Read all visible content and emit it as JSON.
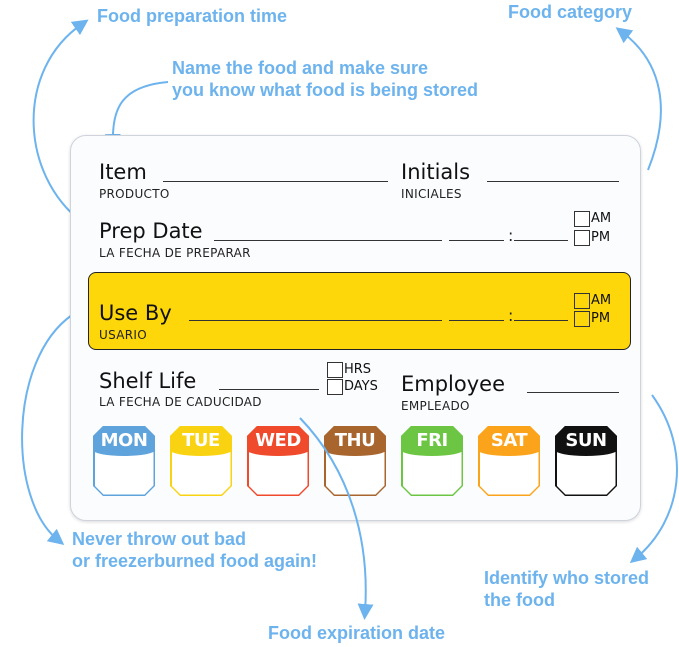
{
  "annotations": {
    "prep_time": "Food preparation time",
    "category": "Food category",
    "name_food": [
      "Name the food and make sure",
      "you know what food is being stored"
    ],
    "never_throw": [
      "Never throw out bad",
      "or freezerburned food again!"
    ],
    "identify": [
      "Identify who stored",
      "the food"
    ],
    "expiration": "Food expiration date"
  },
  "label": {
    "item": "Item",
    "item_sub": "PRODUCTO",
    "initials": "Initials",
    "initials_sub": "INICIALES",
    "prep_date": "Prep Date",
    "prep_date_sub": "LA FECHA DE PREPARAR",
    "use_by": "Use By",
    "use_by_sub": "USARIO",
    "shelf_life": "Shelf Life",
    "shelf_life_sub": "LA FECHA DE CADUCIDAD",
    "employee": "Employee",
    "employee_sub": "EMPLEADO",
    "am": "AM",
    "pm": "PM",
    "hrs": "HRS",
    "days": "DAYS",
    "colon": ":"
  },
  "days": [
    {
      "label": "MON",
      "color": "#5ea3dc"
    },
    {
      "label": "TUE",
      "color": "#f9d312"
    },
    {
      "label": "WED",
      "color": "#ef4a2c"
    },
    {
      "label": "THU",
      "color": "#a8652d"
    },
    {
      "label": "FRI",
      "color": "#6cc644"
    },
    {
      "label": "SAT",
      "color": "#fba31a"
    },
    {
      "label": "SUN",
      "color": "#111111"
    }
  ],
  "colors": {
    "annotation": "#6db3ee",
    "use_by_band": "#fdd70a"
  }
}
